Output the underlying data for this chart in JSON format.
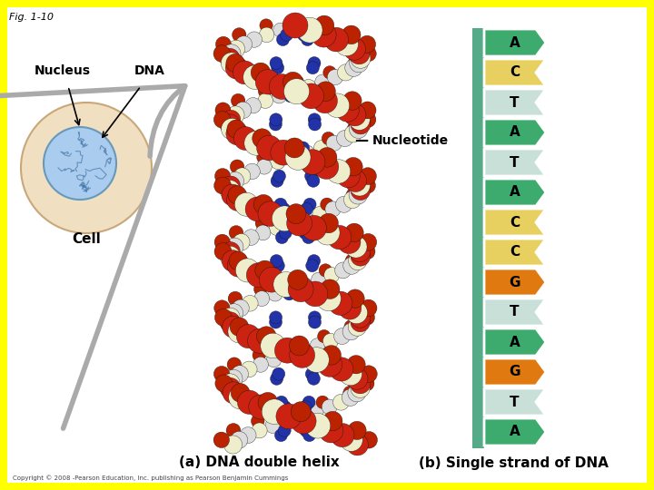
{
  "title": "Fig. 1-10",
  "background_color": "#ffff00",
  "inner_bg": "#ffffff",
  "nucleotides": [
    "A",
    "C",
    "T",
    "A",
    "T",
    "A",
    "C",
    "C",
    "G",
    "T",
    "A",
    "G",
    "T",
    "A"
  ],
  "nucleotide_colors": {
    "A": "#3daa6e",
    "C": "#e8d060",
    "T": "#c8e0d8",
    "G": "#e07a10"
  },
  "strand_bar_color": "#55aa88",
  "labels": {
    "fig": "Fig. 1-10",
    "nucleus": "Nucleus",
    "dna": "DNA",
    "cell": "Cell",
    "nucleotide": "Nucleotide",
    "caption_a": "(a) DNA double helix",
    "caption_b": "(b) Single strand of DNA"
  },
  "cell_circle_color": "#f0dfc0",
  "cell_outline_color": "#c8a87a",
  "nucleus_fill": "#aaccee",
  "nucleus_outline": "#6699bb",
  "nucleus_pattern_color": "#5588aa",
  "copyright": "Copyright © 2008 -Pearson Education, Inc. publishing as Pearson Benjamin Cummings"
}
